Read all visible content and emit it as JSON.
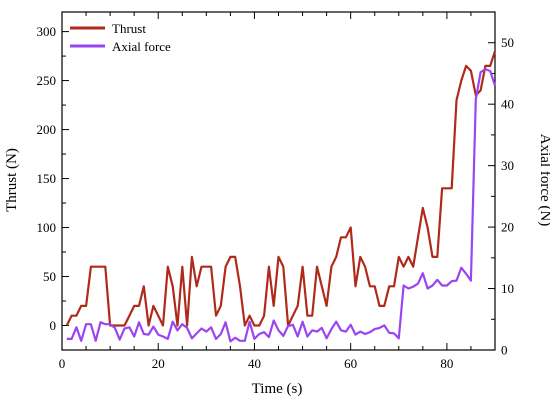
{
  "chart_data": {
    "type": "line",
    "xlabel": "Time (s)",
    "ylabel_left": "Thrust (N)",
    "ylabel_right": "Axial force (N)",
    "xlim": [
      0,
      90
    ],
    "ylim_left": [
      -25,
      320
    ],
    "ylim_right": [
      0,
      55
    ],
    "xticks": [
      0,
      20,
      40,
      60,
      80
    ],
    "yticks_left": [
      0,
      50,
      100,
      150,
      200,
      250,
      300
    ],
    "yticks_right": [
      0,
      10,
      20,
      30,
      40,
      50
    ],
    "legend_position": "top-left",
    "series": [
      {
        "name": "Thrust",
        "axis": "left",
        "color": "#b02a1a",
        "x": [
          1,
          2,
          3,
          4,
          5,
          6,
          7,
          8,
          9,
          10,
          11,
          12,
          13,
          14,
          15,
          16,
          17,
          18,
          19,
          20,
          21,
          22,
          23,
          24,
          25,
          26,
          27,
          28,
          29,
          30,
          31,
          32,
          33,
          34,
          35,
          36,
          37,
          38,
          39,
          40,
          41,
          42,
          43,
          44,
          45,
          46,
          47,
          48,
          49,
          50,
          51,
          52,
          53,
          54,
          55,
          56,
          57,
          58,
          59,
          60,
          61,
          62,
          63,
          64,
          65,
          66,
          67,
          68,
          69,
          70,
          71,
          72,
          73,
          74,
          75,
          76,
          77,
          78,
          79,
          80,
          81,
          82,
          83,
          84,
          85,
          86,
          87,
          88,
          89,
          90
        ],
        "values": [
          0,
          10,
          10,
          20,
          20,
          60,
          60,
          60,
          60,
          0,
          0,
          0,
          0,
          10,
          20,
          20,
          40,
          0,
          20,
          10,
          0,
          60,
          40,
          0,
          60,
          0,
          70,
          40,
          60,
          60,
          60,
          10,
          20,
          60,
          70,
          70,
          40,
          0,
          10,
          0,
          0,
          10,
          60,
          20,
          70,
          60,
          0,
          10,
          20,
          60,
          10,
          10,
          60,
          40,
          20,
          60,
          70,
          90,
          90,
          100,
          40,
          70,
          60,
          40,
          40,
          20,
          20,
          40,
          40,
          70,
          60,
          70,
          60,
          90,
          120,
          100,
          70,
          70,
          140,
          140,
          140,
          230,
          250,
          265,
          260,
          235,
          240,
          265,
          265,
          280
        ]
      },
      {
        "name": "Axial force",
        "axis": "right",
        "color": "#9b45f0",
        "x": [
          1,
          2,
          3,
          4,
          5,
          6,
          7,
          8,
          9,
          10,
          11,
          12,
          13,
          14,
          15,
          16,
          17,
          18,
          19,
          20,
          21,
          22,
          23,
          24,
          25,
          26,
          27,
          28,
          29,
          30,
          31,
          32,
          33,
          34,
          35,
          36,
          37,
          38,
          39,
          40,
          41,
          42,
          43,
          44,
          45,
          46,
          47,
          48,
          49,
          50,
          51,
          52,
          53,
          54,
          55,
          56,
          57,
          58,
          59,
          60,
          61,
          62,
          63,
          64,
          65,
          66,
          67,
          68,
          69,
          70,
          71,
          72,
          73,
          74,
          75,
          76,
          77,
          78,
          79,
          80,
          81,
          82,
          83,
          84,
          85,
          86,
          87,
          88,
          89,
          90
        ],
        "values": [
          1.8,
          1.8,
          3.7,
          1.5,
          4.2,
          4.2,
          1.5,
          4.5,
          4.2,
          4.2,
          3.6,
          1.7,
          3.5,
          3.7,
          2.2,
          4.5,
          2.6,
          2.5,
          3.8,
          2.5,
          2.2,
          1.8,
          4.6,
          3.2,
          4.2,
          3.6,
          1.9,
          2.7,
          3.5,
          3.0,
          3.7,
          1.8,
          2.6,
          4.5,
          1.4,
          2.0,
          1.5,
          1.5,
          4.6,
          1.8,
          2.6,
          2.9,
          2.1,
          4.8,
          3.2,
          2.3,
          3.9,
          4.1,
          2.2,
          4.6,
          2.2,
          3.2,
          3.0,
          3.6,
          1.9,
          3.4,
          4.6,
          3.2,
          3.0,
          4.1,
          2.5,
          3.0,
          2.6,
          2.9,
          3.4,
          3.6,
          4.0,
          2.8,
          2.7,
          1.9,
          10.5,
          10.0,
          10.3,
          10.8,
          12.5,
          10.0,
          10.5,
          11.4,
          10.5,
          10.5,
          11.2,
          11.3,
          13.4,
          12.4,
          11.3,
          40.8,
          45.2,
          45.7,
          45.4,
          43.0
        ]
      }
    ]
  }
}
